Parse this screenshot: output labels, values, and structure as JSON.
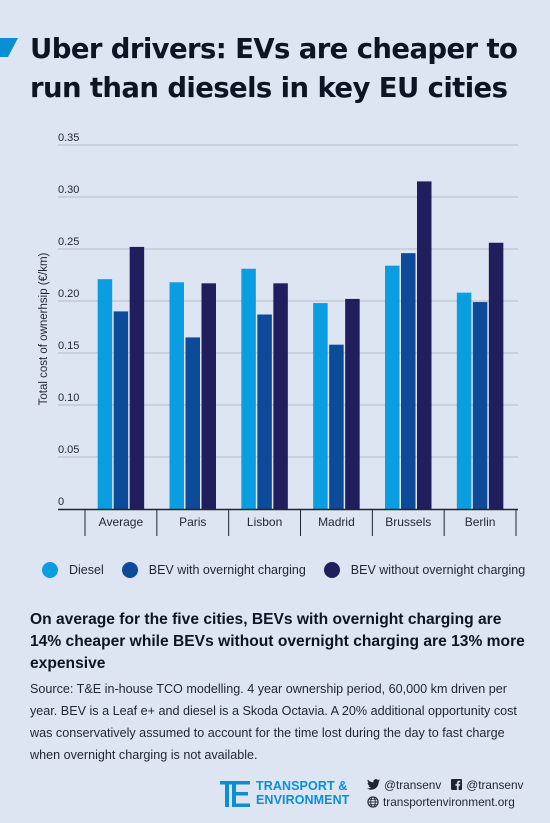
{
  "header": {
    "title": "Uber drivers: EVs are cheaper to run than diesels in key EU cities",
    "accent_color": "#0a8fd6"
  },
  "chart_data": {
    "type": "bar",
    "ylabel": "Total cost of ownerhsip (€/km)",
    "xlabel": "",
    "ylim": [
      0,
      0.35
    ],
    "yticks": [
      "0",
      "0.05",
      "0.10",
      "0.15",
      "0.20",
      "0.25",
      "0.30",
      "0.35"
    ],
    "grid": true,
    "legend_position": "bottom",
    "categories": [
      "Average",
      "Paris",
      "Lisbon",
      "Madrid",
      "Brussels",
      "Berlin"
    ],
    "series": [
      {
        "name": "Diesel",
        "color": "#0a9ee0",
        "values": [
          0.221,
          0.218,
          0.231,
          0.198,
          0.234,
          0.208
        ]
      },
      {
        "name": "BEV with overnight charging",
        "color": "#0d4a98",
        "values": [
          0.19,
          0.165,
          0.187,
          0.158,
          0.246,
          0.199
        ]
      },
      {
        "name": "BEV without overnight charging",
        "color": "#201e5c",
        "values": [
          0.252,
          0.217,
          0.217,
          0.202,
          0.315,
          0.256
        ]
      }
    ]
  },
  "summary": "On average for the five cities, BEVs with overnight charging are 14% cheaper while BEVs without overnight charging are 13% more expensive",
  "source": "Source: T&E in-house TCO modelling. 4 year ownership period, 60,000 km driven per year. BEV is a Leaf e+ and diesel is a Skoda Octavia. A 20% additional opportunity cost was conservatively assumed to account for the time lost during the day to fast charge when overnight charging is not available.",
  "footer": {
    "logo_line1": "TRANSPORT &",
    "logo_line2": "ENVIRONMENT",
    "twitter": "@transenv",
    "facebook": "@transenv",
    "website": "transportenvironment.org",
    "twitter_icon": "twitter-bird-icon",
    "facebook_icon": "facebook-icon",
    "website_icon": "globe-icon"
  }
}
